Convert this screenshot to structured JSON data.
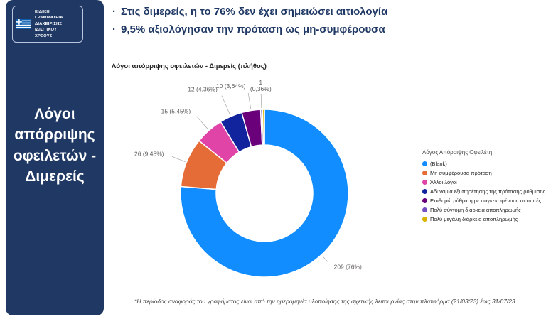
{
  "sidebar": {
    "bg_color": "#1F3864",
    "logo": {
      "line1": "ΕΙΔΙΚΗ ΓΡΑΜΜΑΤΕΙΑ",
      "line2": "ΔΙΑΧΕΙΡΙΣΗΣ ΙΔΙΩΤΙΚΟΥ",
      "line3": "ΧΡΕΟΥΣ"
    },
    "title": "Λόγοι απόρριψης οφειλετών - Διμερείς"
  },
  "bullets": [
    "Στις διμερείς, η το 76% δεν έχει σημειώσει αιτιολογία",
    "9,5% αξιολόγησαν την πρόταση ως μη-συμφέρουσα"
  ],
  "chart_data": {
    "type": "pie",
    "donut": true,
    "title": "Λόγοι απόρριψης οφειλετών - Διμερείς (πλήθος)",
    "legend_title": "Λόγος Απόρριψης Οφειλέτη",
    "legend_position": "right",
    "slices": [
      {
        "label": "(Blank)",
        "value": 209,
        "pct_label": "209 (76%)",
        "color": "#118DFF"
      },
      {
        "label": "Μη συμφέρουσα πρόταση",
        "value": 26,
        "pct_label": "26 (9,45%)",
        "color": "#E66C37"
      },
      {
        "label": "Άλλοι λόγοι",
        "value": 15,
        "pct_label": "15 (5,45%)",
        "color": "#E044A7"
      },
      {
        "label": "Αδυναμία εξυπηρέτησης της πρότασης ρύθμισης",
        "value": 12,
        "pct_label": "12 (4,36%)",
        "color": "#12239E"
      },
      {
        "label": "Επιθυμώ ρύθμιση με συγκεκριμένους πιστωτές",
        "value": 10,
        "pct_label": "10 (3,64%)",
        "color": "#6B007B"
      },
      {
        "label": "Πολύ σύντομη διάρκεια αποπληρωμής",
        "value": 1,
        "pct_label": "1 (0,36%)",
        "color": "#744EC2"
      },
      {
        "label": "Πολύ μεγάλη διάρκεια αποπληρωμής",
        "value": 1,
        "pct_label": "",
        "color": "#D9B300"
      }
    ]
  },
  "footnote": "*Η περίοδος αναφοράς του γραφήματος είναι από την ημερομηνία υλοποίησης της σχετικής λειτουργίας στην πλατφόρμα (21/03/23) έως 31/07/23."
}
